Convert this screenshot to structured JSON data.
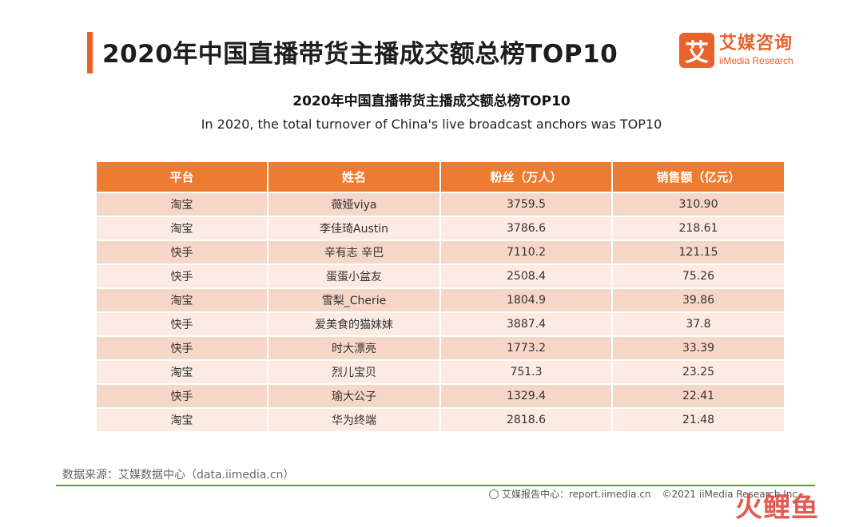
{
  "header": {
    "title": "2020年中国直播带货主播成交额总榜TOP10",
    "logo_mark": "艾",
    "logo_cn": "艾媒咨询",
    "logo_en": "iiMedia Research"
  },
  "table_title": "2020年中国直播带货主播成交额总榜TOP10",
  "table_subtitle": "In 2020, the total turnover of China's live broadcast anchors was TOP10",
  "table": {
    "columns": [
      "平台",
      "姓名",
      "粉丝（万人）",
      "销售额（亿元）"
    ],
    "rows": [
      [
        "淘宝",
        "薇娅viya",
        "3759.5",
        "310.90"
      ],
      [
        "淘宝",
        "李佳琦Austin",
        "3786.6",
        "218.61"
      ],
      [
        "快手",
        "辛有志 辛巴",
        "7110.2",
        "121.15"
      ],
      [
        "快手",
        "蛋蛋小盆友",
        "2508.4",
        "75.26"
      ],
      [
        "淘宝",
        "雪梨_Cherie",
        "1804.9",
        "39.86"
      ],
      [
        "快手",
        "爱美食的猫妹妹",
        "3887.4",
        "37.8"
      ],
      [
        "快手",
        "时大漂亮",
        "1773.2",
        "33.39"
      ],
      [
        "淘宝",
        "烈儿宝贝",
        "751.3",
        "23.25"
      ],
      [
        "快手",
        "瑜大公子",
        "1329.4",
        "22.41"
      ],
      [
        "淘宝",
        "华为终端",
        "2818.6",
        "21.48"
      ]
    ]
  },
  "source": "数据来源：艾媒数据中心（data.iimedia.cn）",
  "footer": {
    "report": "艾媒报告中心：report.iimedia.cn",
    "copyright": "©2021  iiMedia Research  Inc"
  },
  "watermark": "火鲤鱼",
  "colors": {
    "accent": "#e8622a",
    "table_header": "#ec7c32",
    "row_odd": "#f6d6c7",
    "row_even": "#fbebe3",
    "footer_line": "#5aa033"
  }
}
